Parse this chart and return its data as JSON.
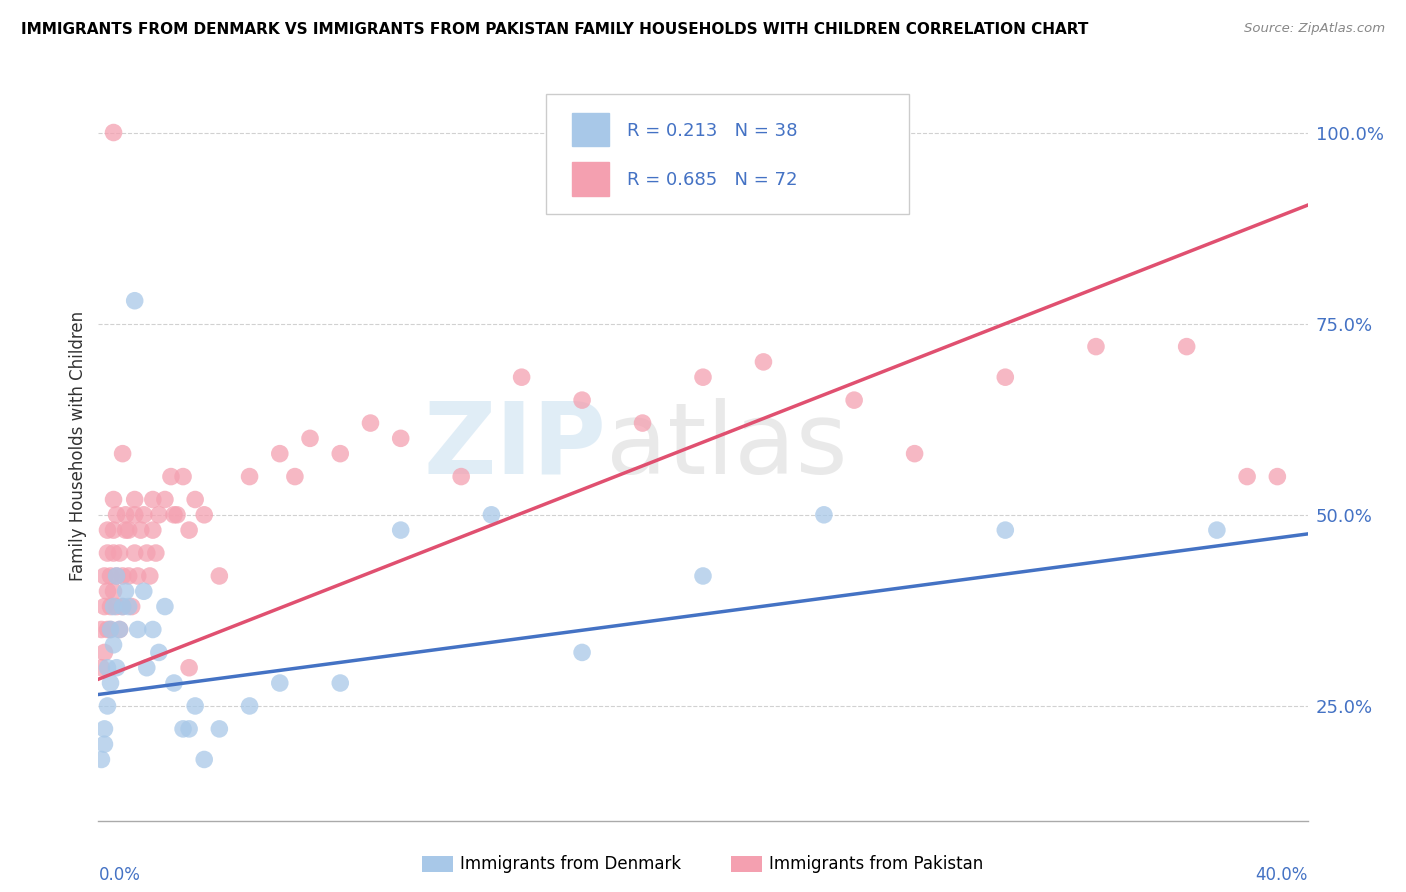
{
  "title": "IMMIGRANTS FROM DENMARK VS IMMIGRANTS FROM PAKISTAN FAMILY HOUSEHOLDS WITH CHILDREN CORRELATION CHART",
  "source": "Source: ZipAtlas.com",
  "xlim": [
    0.0,
    0.4
  ],
  "ylim": [
    0.1,
    1.08
  ],
  "yticks": [
    0.25,
    0.5,
    0.75,
    1.0
  ],
  "ytick_labels": [
    "25.0%",
    "50.0%",
    "75.0%",
    "100.0%"
  ],
  "denmark_color": "#a8c8e8",
  "pakistan_color": "#f4a0b0",
  "denmark_line_color": "#4472c4",
  "pakistan_line_color": "#e05070",
  "denmark_R": 0.213,
  "denmark_N": 38,
  "pakistan_R": 0.685,
  "pakistan_N": 72,
  "watermark": "ZIPatlas",
  "legend_label_denmark": "Immigrants from Denmark",
  "legend_label_pakistan": "Immigrants from Pakistan",
  "dk_line_x0": 0.0,
  "dk_line_y0": 0.265,
  "dk_line_x1": 0.4,
  "dk_line_y1": 0.475,
  "pk_line_x0": 0.0,
  "pk_line_y0": 0.285,
  "pk_line_x1": 0.4,
  "pk_line_y1": 0.905,
  "denmark_scatter_x": [
    0.001,
    0.002,
    0.002,
    0.003,
    0.003,
    0.004,
    0.004,
    0.005,
    0.005,
    0.006,
    0.006,
    0.007,
    0.008,
    0.009,
    0.01,
    0.012,
    0.013,
    0.015,
    0.016,
    0.018,
    0.02,
    0.022,
    0.025,
    0.028,
    0.03,
    0.032,
    0.035,
    0.04,
    0.05,
    0.06,
    0.08,
    0.1,
    0.13,
    0.16,
    0.2,
    0.24,
    0.3,
    0.37
  ],
  "denmark_scatter_y": [
    0.18,
    0.2,
    0.22,
    0.25,
    0.3,
    0.28,
    0.35,
    0.33,
    0.38,
    0.3,
    0.42,
    0.35,
    0.38,
    0.4,
    0.38,
    0.78,
    0.35,
    0.4,
    0.3,
    0.35,
    0.32,
    0.38,
    0.28,
    0.22,
    0.22,
    0.25,
    0.18,
    0.22,
    0.25,
    0.28,
    0.28,
    0.48,
    0.5,
    0.32,
    0.42,
    0.5,
    0.48,
    0.48
  ],
  "pakistan_scatter_x": [
    0.001,
    0.001,
    0.002,
    0.002,
    0.002,
    0.003,
    0.003,
    0.003,
    0.003,
    0.004,
    0.004,
    0.004,
    0.005,
    0.005,
    0.005,
    0.005,
    0.006,
    0.006,
    0.006,
    0.007,
    0.007,
    0.008,
    0.008,
    0.009,
    0.009,
    0.01,
    0.01,
    0.011,
    0.012,
    0.012,
    0.013,
    0.014,
    0.015,
    0.016,
    0.017,
    0.018,
    0.019,
    0.02,
    0.022,
    0.024,
    0.026,
    0.028,
    0.03,
    0.032,
    0.035,
    0.04,
    0.05,
    0.06,
    0.065,
    0.07,
    0.08,
    0.09,
    0.1,
    0.12,
    0.14,
    0.16,
    0.18,
    0.2,
    0.22,
    0.25,
    0.27,
    0.3,
    0.33,
    0.36,
    0.38,
    0.39,
    0.008,
    0.012,
    0.018,
    0.025,
    0.03,
    0.005
  ],
  "pakistan_scatter_y": [
    0.3,
    0.35,
    0.32,
    0.38,
    0.42,
    0.35,
    0.4,
    0.45,
    0.48,
    0.38,
    0.42,
    0.35,
    0.4,
    0.45,
    0.48,
    0.52,
    0.38,
    0.42,
    0.5,
    0.35,
    0.45,
    0.38,
    0.42,
    0.48,
    0.5,
    0.42,
    0.48,
    0.38,
    0.45,
    0.5,
    0.42,
    0.48,
    0.5,
    0.45,
    0.42,
    0.48,
    0.45,
    0.5,
    0.52,
    0.55,
    0.5,
    0.55,
    0.48,
    0.52,
    0.5,
    0.42,
    0.55,
    0.58,
    0.55,
    0.6,
    0.58,
    0.62,
    0.6,
    0.55,
    0.68,
    0.65,
    0.62,
    0.68,
    0.7,
    0.65,
    0.58,
    0.68,
    0.72,
    0.72,
    0.55,
    0.55,
    0.58,
    0.52,
    0.52,
    0.5,
    0.3,
    1.0
  ]
}
